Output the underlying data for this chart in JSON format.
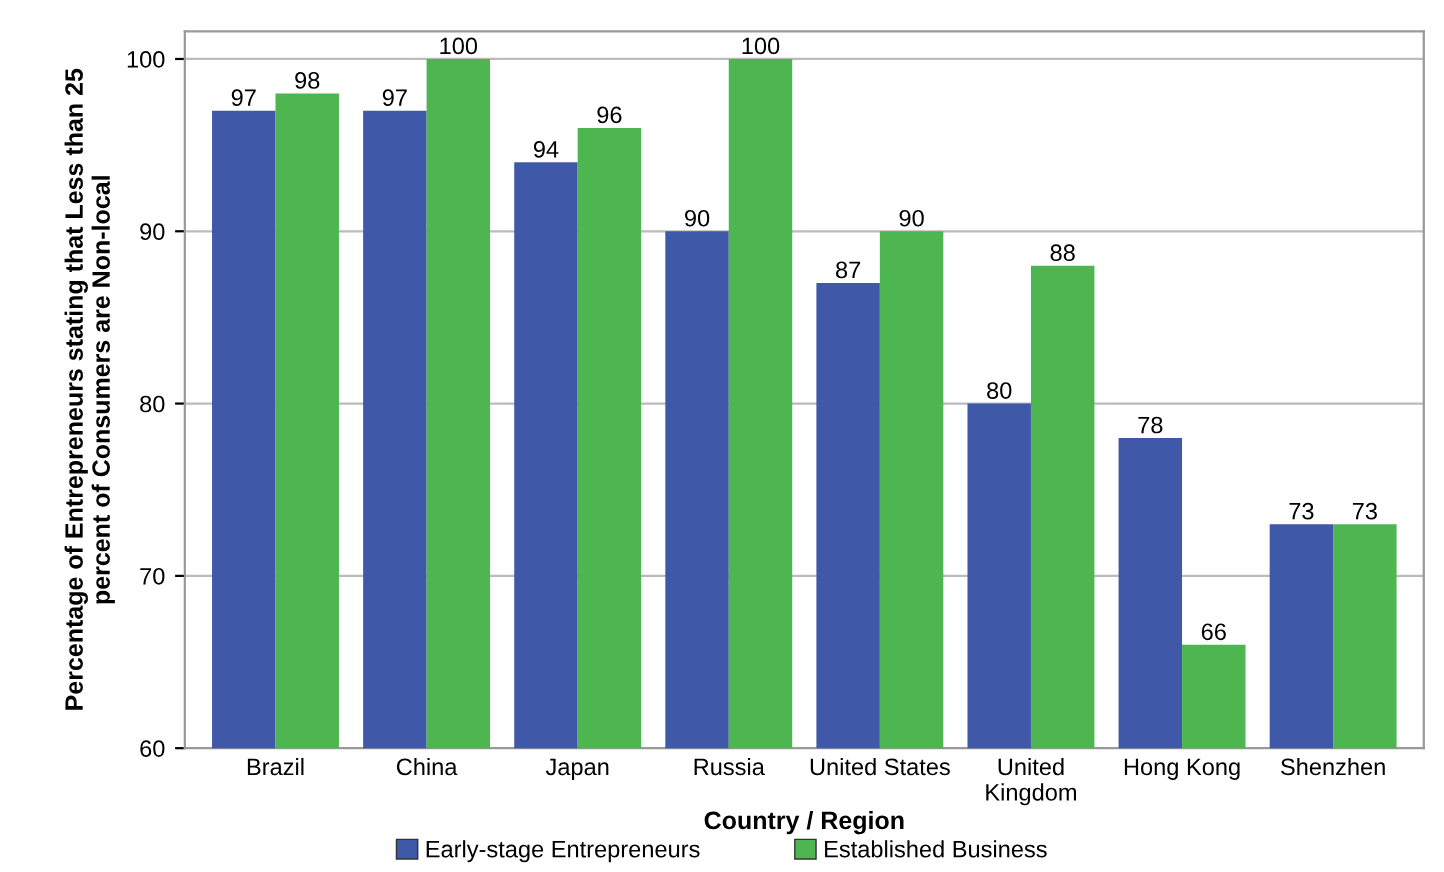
{
  "chart_data": {
    "type": "bar",
    "xlabel": "Country / Region",
    "ylabel": "Percentage of Entrepreneurs stating that Less than 25\npercent of Consumers are Non-local",
    "categories": [
      "Brazil",
      "China",
      "Japan",
      "Russia",
      "United States",
      "United\nKingdom",
      "Hong Kong",
      "Shenzhen"
    ],
    "series": [
      {
        "name": "Early-stage Entrepreneurs",
        "color": "#3f59a8",
        "values": [
          97,
          97,
          94,
          90,
          87,
          80,
          78,
          73
        ]
      },
      {
        "name": "Established Business",
        "color": "#4db650",
        "values": [
          98,
          100,
          96,
          100,
          90,
          88,
          66,
          73
        ]
      }
    ],
    "ylim": [
      60,
      101.6
    ],
    "yticks": [
      60,
      70,
      80,
      90,
      100
    ],
    "grid": "y",
    "legend": "bottom",
    "data_labels": true
  }
}
